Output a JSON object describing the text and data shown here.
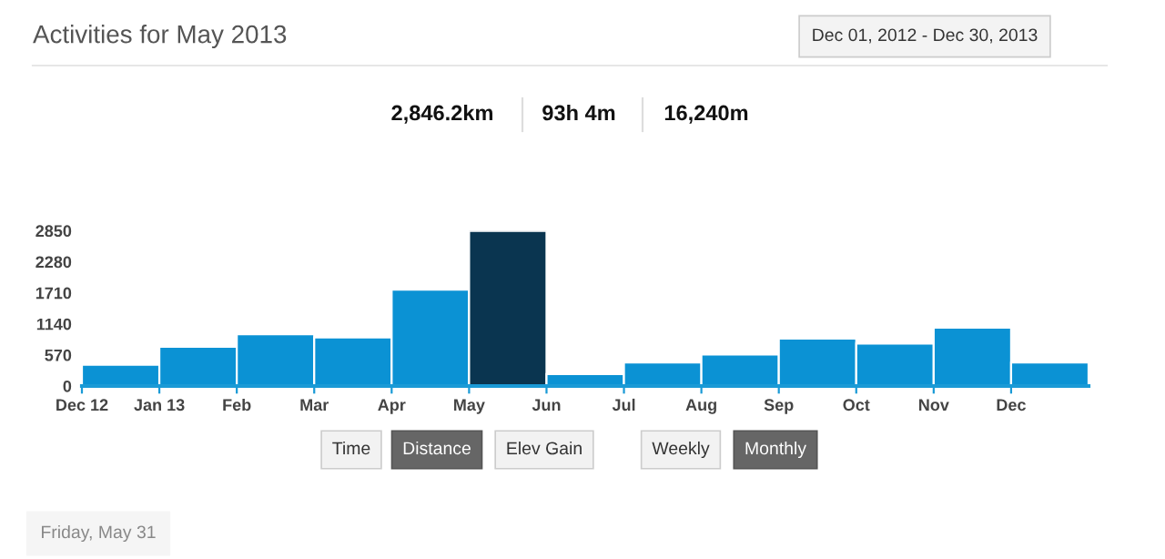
{
  "chart_data": {
    "type": "bar",
    "title": "Activities for May 2013",
    "categories": [
      "Dec 12",
      "Jan 13",
      "Feb",
      "Mar",
      "Apr",
      "May",
      "Jun",
      "Jul",
      "Aug",
      "Sep",
      "Oct",
      "Nov",
      "Dec"
    ],
    "values": [
      390,
      720,
      950,
      890,
      1770,
      2846,
      220,
      430,
      580,
      870,
      780,
      1070,
      430
    ],
    "colors": [
      "#0b92d4",
      "#0b92d4",
      "#0b92d4",
      "#0b92d4",
      "#0b92d4",
      "#0a3550",
      "#0b92d4",
      "#0b92d4",
      "#0b92d4",
      "#0b92d4",
      "#0b92d4",
      "#0b92d4",
      "#0b92d4"
    ],
    "ylim": [
      0,
      2850
    ],
    "yticks": [
      0,
      570,
      1140,
      1710,
      2280,
      2850
    ],
    "grid": false,
    "legend": false,
    "annotations": [
      "Dec 01, 2012 - Dec 30, 2013",
      "2,846.2km",
      "93h 4m",
      "16,240m",
      "Time",
      "Distance",
      "Elev Gain",
      "Weekly",
      "Monthly",
      "Friday, May 31"
    ]
  }
}
